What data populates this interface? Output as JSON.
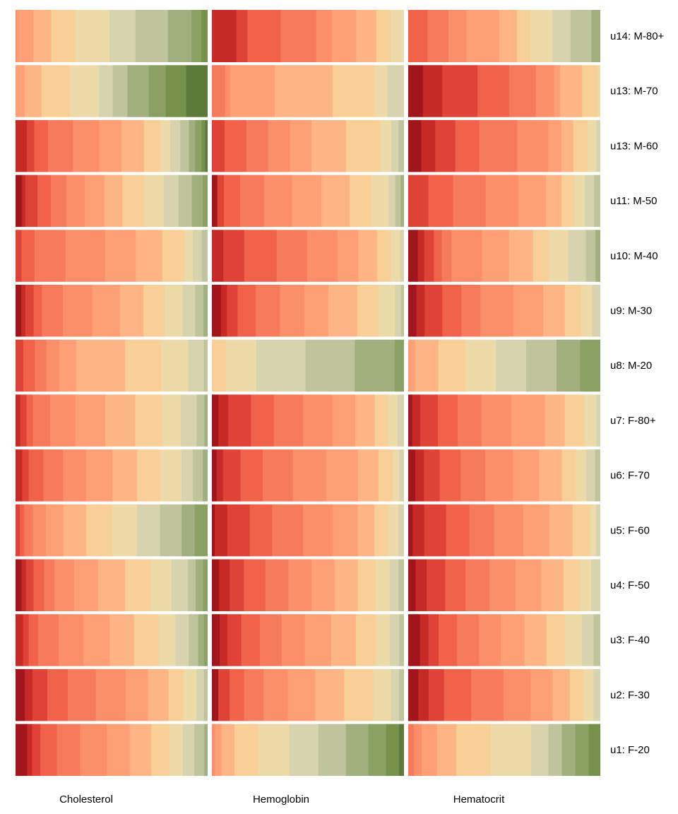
{
  "chart_data": {
    "type": "heatmap",
    "title": "",
    "columns": [
      "Cholesterol",
      "Hemoglobin",
      "Hematocrit"
    ],
    "rows": [
      {
        "label": "u14: M-80+",
        "bands": [
          [
            0.2,
            2,
            2.2,
            3,
            4.2,
            3.2,
            4,
            2.9,
            1.2,
            0.8
          ],
          [
            2.2,
            1,
            3,
            3.2,
            1.4,
            2.2,
            1.8,
            1.3,
            1.2
          ],
          [
            1.3,
            1.4,
            1.2,
            2.2,
            1.2,
            0.9,
            1.5,
            1.2,
            1.4,
            0.6
          ]
        ]
      },
      {
        "label": "u13: M-70",
        "bands": [
          [
            0.8,
            1.5,
            2.5,
            2.6,
            1.2,
            1.3,
            1.9,
            1.5,
            1.8,
            1.9
          ],
          [
            0.8,
            0.3,
            2.7,
            3.5,
            2.5,
            0.8,
            1
          ],
          [
            1.2,
            1.6,
            2.9,
            2.6,
            2.2,
            1.5,
            0.5,
            1.8,
            1.3,
            0.2
          ]
        ]
      },
      {
        "label": "u13: M-60",
        "bands": [
          [
            0.9,
            0.6,
            1.1,
            2,
            2.1,
            1.8,
            1.8,
            1.3,
            0.8,
            0.8,
            0.7,
            0.5,
            0.5,
            0.3,
            0.2
          ],
          [
            0.7,
            1.2,
            1.2,
            1.2,
            1.2,
            1.9,
            1.9,
            0.6,
            0.4,
            0.3
          ],
          [
            1.3,
            1.4,
            2,
            2.4,
            3.8,
            3.1,
            1.3,
            1.2,
            1.4,
            0.9,
            0.4
          ]
        ]
      },
      {
        "label": "u11: M-50",
        "bands": [
          [
            0.5,
            0.3,
            1,
            1.1,
            1.3,
            1.5,
            1.6,
            1.5,
            1.8,
            1.6,
            1.2,
            1.1,
            0.9,
            0.4
          ],
          [
            0.5,
            0.6,
            1.5,
            2.2,
            2.6,
            2.7,
            2.6,
            2,
            1.6,
            0.6,
            0.5,
            0.3
          ],
          [
            1.3,
            1.6,
            2.1,
            2.1,
            1.8,
            1,
            0.8,
            0.7,
            0.6,
            0.4
          ]
        ]
      },
      {
        "label": "u10: M-40",
        "bands": [
          [
            0.4,
            0.9,
            2.1,
            2.7,
            2.1,
            1.8,
            1.5,
            0.6,
            0.6,
            0.4
          ],
          [
            0.6,
            1.1,
            1.7,
            1.6,
            1.6,
            1.1,
            1,
            0.7,
            0.5,
            0.2
          ],
          [
            0.6,
            0.4,
            0.6,
            0.5,
            0.6,
            1.9,
            1.7,
            1.5,
            1,
            1.2,
            1.1,
            0.6,
            0.3
          ]
        ]
      },
      {
        "label": "u9: M-30",
        "bands": [
          [
            0.4,
            0.3,
            0.6,
            0.6,
            1.5,
            2.1,
            2,
            1.7,
            1.5,
            1.3,
            0.9,
            0.6,
            0.3
          ],
          [
            0.6,
            0.4,
            0.7,
            1.2,
            1.6,
            1.6,
            1.6,
            1.9,
            1.4,
            1.1,
            0.4,
            0.2
          ],
          [
            0.6,
            0.6,
            1.3,
            1.4,
            1.4,
            2.4,
            2.2,
            1.6,
            1.2,
            0.8,
            0.6
          ]
        ]
      },
      {
        "label": "u8: M-20",
        "bands": [
          [
            0.6,
            0.9,
            0.9,
            1,
            1.3,
            3.8,
            2.8,
            2.1,
            1.2,
            0.3
          ],
          [
            0.6,
            1.3,
            2.1,
            2.1,
            1.7,
            0.4
          ],
          [
            0.2,
            0.7,
            0.8,
            0.9,
            0.9,
            0.9,
            0.7,
            0.6
          ]
        ]
      },
      {
        "label": "u7: F-80+",
        "bands": [
          [
            0.3,
            0.4,
            0.4,
            1.1,
            1.6,
            1.9,
            1.9,
            1.7,
            1.2,
            1,
            0.5,
            0.2
          ],
          [
            0.2,
            0.3,
            0.7,
            0.7,
            0.9,
            0.9,
            0.7,
            0.6,
            0.4,
            0.3,
            0.2
          ],
          [
            0.2,
            0.4,
            0.9,
            1,
            1.2,
            1.5,
            1.7,
            1,
            1,
            0.6,
            0.2
          ]
        ]
      },
      {
        "label": "u6: F-70",
        "bands": [
          [
            0.4,
            0.4,
            0.9,
            1.2,
            1.4,
            1.6,
            1.5,
            1.4,
            1.3,
            0.7,
            0.6,
            0.3
          ],
          [
            0.3,
            0.4,
            1.1,
            1.4,
            1.9,
            2.1,
            2,
            1.3,
            0.9,
            0.4,
            0.3
          ],
          [
            0.4,
            0.5,
            0.9,
            1.2,
            1.4,
            1.6,
            1.5,
            1.3,
            0.8,
            0.6,
            0.5,
            0.3
          ]
        ]
      },
      {
        "label": "u5: F-60",
        "bands": [
          [
            0.3,
            0.3,
            0.6,
            0.9,
            1.2,
            1.6,
            1.8,
            1.7,
            1.6,
            1.5,
            0.9,
            0.9
          ],
          [
            0.2,
            0.9,
            1.6,
            1.6,
            2.2,
            2.1,
            1.8,
            1.2,
            1,
            0.7,
            0.4
          ],
          [
            0.3,
            0.8,
            1.5,
            1.6,
            1.7,
            2,
            1.8,
            1.6,
            1.2,
            0.4,
            0.3
          ]
        ]
      },
      {
        "label": "u4: F-50",
        "bands": [
          [
            0.4,
            0.3,
            0.5,
            0.7,
            0.7,
            1.3,
            1.6,
            1.8,
            1.7,
            1.4,
            1.1,
            0.5,
            0.5,
            0.3
          ],
          [
            0.4,
            0.6,
            0.8,
            1.2,
            1.3,
            1.3,
            1.3,
            1.3,
            1,
            0.8,
            0.5,
            0.3
          ],
          [
            0.4,
            0.6,
            1,
            1.1,
            1.3,
            1.4,
            1.4,
            1.2,
            0.9,
            0.6,
            0.5
          ]
        ]
      },
      {
        "label": "u3: F-40",
        "bands": [
          [
            0.4,
            0.3,
            0.5,
            1.1,
            1.3,
            1.4,
            1.3,
            1.3,
            0.9,
            0.7,
            0.5,
            0.3,
            0.2
          ],
          [
            0.5,
            0.5,
            0.9,
            1.2,
            1.4,
            1.5,
            1.7,
            1.6,
            1.3,
            0.9,
            0.6,
            0.3
          ],
          [
            0.7,
            0.5,
            0.6,
            1.1,
            1.3,
            1.3,
            1.4,
            1.3,
            1.1,
            1,
            0.7,
            0.4
          ]
        ]
      },
      {
        "label": "u2: F-30",
        "bands": [
          [
            0.5,
            0.4,
            0.8,
            1.1,
            1.5,
            1.6,
            1.2,
            1.1,
            0.8,
            0.7,
            0.4,
            0.2
          ],
          [
            0.4,
            0.7,
            0.9,
            1.2,
            1.5,
            1.7,
            1.8,
            1.8,
            1.1,
            0.5,
            0.3
          ],
          [
            0.6,
            0.6,
            0.9,
            1.6,
            1.9,
            1.6,
            1.3,
            1,
            0.8,
            0.6,
            0.4
          ]
        ]
      },
      {
        "label": "u1: F-20",
        "bands": [
          [
            0.3,
            0.4,
            0.3,
            0.5,
            1,
            1.4,
            1.6,
            1.4,
            1.3,
            1.1,
            0.8,
            0.7,
            0.6,
            0.2
          ],
          [
            0.2,
            0.4,
            0.8,
            1.5,
            1.9,
            1.8,
            1.7,
            1.4,
            1.1,
            0.8,
            0.3
          ],
          [
            0.3,
            0.4,
            0.8,
            1,
            1.8,
            2.1,
            0.9,
            0.7,
            0.7,
            0.7,
            0.6
          ]
        ]
      }
    ],
    "bandStartIndex": [
      [
        [
          5,
          6,
          7,
          8,
          9,
          10,
          11,
          12,
          13,
          14
        ],
        [
          1,
          2,
          3,
          4,
          5,
          6,
          7,
          8,
          9
        ],
        [
          3,
          4,
          5,
          6,
          7,
          8,
          9,
          10,
          11,
          12
        ]
      ],
      [
        [
          6,
          7,
          8,
          9,
          10,
          11,
          12,
          13,
          14,
          15
        ],
        [
          4,
          5,
          6,
          7,
          8,
          9,
          10
        ],
        [
          0,
          1,
          2,
          3,
          4,
          5,
          6,
          7,
          8,
          9
        ]
      ],
      [
        [
          1,
          2,
          3,
          4,
          5,
          6,
          7,
          8,
          9,
          10,
          11,
          12,
          13,
          14,
          15
        ],
        [
          2,
          3,
          4,
          5,
          6,
          7,
          8,
          9,
          10,
          11
        ],
        [
          0,
          1,
          2,
          3,
          4,
          5,
          6,
          7,
          8,
          9,
          10
        ]
      ],
      [
        [
          0,
          1,
          2,
          3,
          4,
          5,
          6,
          7,
          8,
          9,
          10,
          11,
          12,
          13
        ],
        [
          0,
          2,
          3,
          4,
          5,
          6,
          7,
          8,
          9,
          10,
          11,
          12
        ],
        [
          2,
          3,
          4,
          5,
          6,
          7,
          8,
          9,
          10,
          11
        ]
      ],
      [
        [
          2,
          3,
          4,
          5,
          6,
          7,
          8,
          9,
          10,
          11
        ],
        [
          1,
          2,
          3,
          4,
          5,
          6,
          7,
          8,
          9,
          10
        ],
        [
          0,
          1,
          2,
          3,
          4,
          5,
          6,
          7,
          8,
          9,
          10,
          11,
          12
        ]
      ],
      [
        [
          0,
          1,
          2,
          3,
          4,
          5,
          6,
          7,
          8,
          9,
          10,
          11,
          12
        ],
        [
          0,
          1,
          2,
          3,
          4,
          5,
          6,
          7,
          8,
          9,
          10,
          11
        ],
        [
          0,
          1,
          2,
          3,
          4,
          5,
          6,
          7,
          8,
          9,
          10
        ]
      ],
      [
        [
          2,
          3,
          4,
          5,
          6,
          7,
          8,
          9,
          10,
          11
        ],
        [
          8,
          9,
          10,
          11,
          12,
          13
        ],
        [
          6,
          7,
          8,
          9,
          10,
          11,
          12,
          13
        ]
      ],
      [
        [
          1,
          2,
          3,
          4,
          5,
          6,
          7,
          8,
          9,
          10,
          11,
          12
        ],
        [
          0,
          1,
          2,
          3,
          4,
          5,
          6,
          7,
          8,
          9,
          10
        ],
        [
          0,
          1,
          2,
          3,
          4,
          5,
          6,
          7,
          8,
          9,
          10
        ]
      ],
      [
        [
          1,
          2,
          3,
          4,
          5,
          6,
          7,
          8,
          9,
          10,
          11,
          12
        ],
        [
          0,
          1,
          2,
          3,
          4,
          5,
          6,
          7,
          8,
          9,
          10
        ],
        [
          0,
          1,
          2,
          3,
          4,
          5,
          6,
          7,
          8,
          9,
          10,
          11
        ]
      ],
      [
        [
          2,
          3,
          4,
          5,
          6,
          7,
          8,
          9,
          10,
          11,
          12,
          13
        ],
        [
          0,
          1,
          2,
          3,
          4,
          5,
          6,
          7,
          8,
          9,
          10
        ],
        [
          0,
          1,
          2,
          3,
          4,
          5,
          6,
          7,
          8,
          9,
          10
        ]
      ],
      [
        [
          0,
          1,
          2,
          3,
          4,
          5,
          6,
          7,
          8,
          9,
          10,
          11,
          12,
          13
        ],
        [
          0,
          1,
          2,
          3,
          4,
          5,
          6,
          7,
          8,
          9,
          10,
          11
        ],
        [
          0,
          1,
          2,
          3,
          4,
          5,
          6,
          7,
          8,
          9,
          10
        ]
      ],
      [
        [
          1,
          2,
          3,
          4,
          5,
          6,
          7,
          8,
          9,
          10,
          11,
          12,
          13
        ],
        [
          0,
          1,
          2,
          3,
          4,
          5,
          6,
          7,
          8,
          9,
          10,
          11
        ],
        [
          0,
          1,
          2,
          3,
          4,
          5,
          6,
          7,
          8,
          9,
          10,
          11
        ]
      ],
      [
        [
          0,
          1,
          2,
          3,
          4,
          5,
          6,
          7,
          8,
          9,
          10,
          11
        ],
        [
          0,
          2,
          3,
          4,
          5,
          6,
          7,
          8,
          9,
          10,
          11
        ],
        [
          0,
          1,
          2,
          3,
          4,
          5,
          6,
          7,
          8,
          9,
          10
        ]
      ],
      [
        [
          0,
          0,
          1,
          2,
          3,
          4,
          5,
          6,
          7,
          8,
          9,
          10,
          11,
          12
        ],
        [
          5,
          6,
          7,
          8,
          9,
          10,
          11,
          12,
          13,
          14,
          15
        ],
        [
          4,
          5,
          6,
          7,
          8,
          9,
          10,
          11,
          12,
          13,
          14
        ]
      ]
    ],
    "palette": [
      "#a0161c",
      "#c52a26",
      "#df4236",
      "#f06249",
      "#f57b5c",
      "#fb8f6a",
      "#fe9f76",
      "#fdb585",
      "#f8cf97",
      "#ecdba8",
      "#d7d3ae",
      "#bfc49c",
      "#a1af7f",
      "#8aa163",
      "#76914a",
      "#5e7a3a",
      "#44602d",
      "#2d4c22"
    ]
  }
}
